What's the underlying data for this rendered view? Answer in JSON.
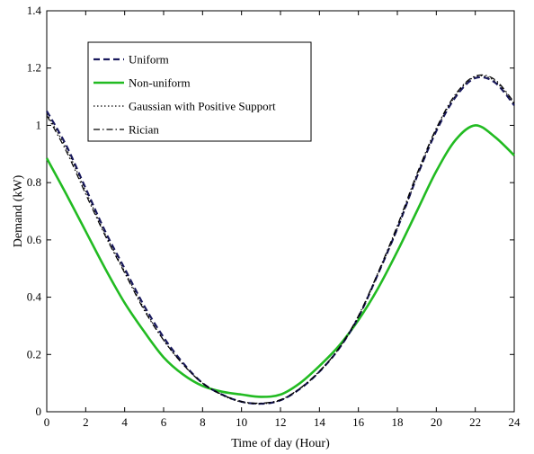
{
  "chart_data": {
    "type": "line",
    "xlabel": "Time of day (Hour)",
    "ylabel": "Demand (kW)",
    "xlim": [
      0,
      24
    ],
    "ylim": [
      0,
      1.4
    ],
    "xticks": [
      0,
      2,
      4,
      6,
      8,
      10,
      12,
      14,
      16,
      18,
      20,
      22,
      24
    ],
    "yticks": [
      0,
      0.2,
      0.4,
      0.6,
      0.8,
      1,
      1.2,
      1.4
    ],
    "ytick_labels": [
      "0",
      "0.2",
      "0.4",
      "0.6",
      "0.8",
      "1",
      "1.2",
      "1.4"
    ],
    "grid": false,
    "legend_position": "top-left",
    "series": [
      {
        "name": "Uniform",
        "style": "dashed",
        "color": "#1a1a5e",
        "x": [
          0,
          1,
          2,
          3,
          4,
          5,
          6,
          7,
          8,
          9,
          10,
          11,
          12,
          13,
          14,
          15,
          16,
          17,
          18,
          19,
          20,
          21,
          22,
          23,
          24
        ],
        "y": [
          1.05,
          0.93,
          0.78,
          0.63,
          0.5,
          0.37,
          0.26,
          0.17,
          0.1,
          0.06,
          0.035,
          0.028,
          0.04,
          0.08,
          0.14,
          0.22,
          0.33,
          0.48,
          0.64,
          0.82,
          0.98,
          1.1,
          1.165,
          1.15,
          1.07
        ]
      },
      {
        "name": "Non-uniform",
        "style": "solid",
        "color": "#22bb22",
        "x": [
          0,
          1,
          2,
          3,
          4,
          5,
          6,
          7,
          8,
          9,
          10,
          11,
          12,
          13,
          14,
          15,
          16,
          17,
          18,
          19,
          20,
          21,
          22,
          23,
          24
        ],
        "y": [
          0.885,
          0.76,
          0.63,
          0.5,
          0.38,
          0.28,
          0.19,
          0.13,
          0.09,
          0.07,
          0.06,
          0.052,
          0.06,
          0.1,
          0.16,
          0.23,
          0.32,
          0.43,
          0.56,
          0.7,
          0.84,
          0.95,
          1.0,
          0.96,
          0.895
        ]
      },
      {
        "name": "Gaussian with Positive Support",
        "style": "dotted",
        "color": "#000000",
        "x": [
          0,
          1,
          2,
          3,
          4,
          5,
          6,
          7,
          8,
          9,
          10,
          11,
          12,
          13,
          14,
          15,
          16,
          17,
          18,
          19,
          20,
          21,
          22,
          23,
          24
        ],
        "y": [
          1.04,
          0.92,
          0.77,
          0.62,
          0.49,
          0.36,
          0.25,
          0.165,
          0.1,
          0.058,
          0.034,
          0.028,
          0.04,
          0.08,
          0.14,
          0.22,
          0.33,
          0.48,
          0.64,
          0.82,
          0.985,
          1.105,
          1.17,
          1.155,
          1.075
        ]
      },
      {
        "name": "Rician",
        "style": "dashdot",
        "color": "#000000",
        "x": [
          0,
          1,
          2,
          3,
          4,
          5,
          6,
          7,
          8,
          9,
          10,
          11,
          12,
          13,
          14,
          15,
          16,
          17,
          18,
          19,
          20,
          21,
          22,
          23,
          24
        ],
        "y": [
          1.035,
          0.91,
          0.76,
          0.615,
          0.485,
          0.355,
          0.25,
          0.165,
          0.1,
          0.06,
          0.036,
          0.03,
          0.042,
          0.082,
          0.142,
          0.222,
          0.335,
          0.485,
          0.65,
          0.83,
          0.99,
          1.11,
          1.172,
          1.16,
          1.08
        ]
      }
    ]
  }
}
